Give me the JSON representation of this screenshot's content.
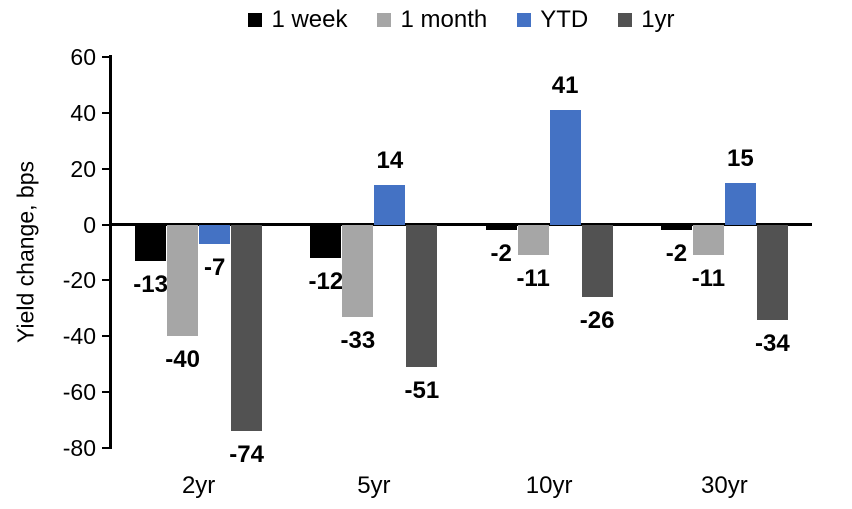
{
  "chart_data": {
    "type": "bar",
    "title": "",
    "xlabel": "",
    "ylabel": "Yield change, bps",
    "categories": [
      "2yr",
      "5yr",
      "10yr",
      "30yr"
    ],
    "series": [
      {
        "name": "1 week",
        "color": "#000000",
        "values": [
          -13,
          -12,
          -2,
          -2
        ]
      },
      {
        "name": "1 month",
        "color": "#A6A6A6",
        "values": [
          -40,
          -33,
          -11,
          -11
        ]
      },
      {
        "name": "YTD",
        "color": "#4472C4",
        "values": [
          -7,
          14,
          41,
          15
        ]
      },
      {
        "name": "1yr",
        "color": "#525252",
        "values": [
          -74,
          -51,
          -26,
          -34
        ]
      }
    ],
    "ylim": [
      -80,
      60
    ],
    "yticks": [
      60,
      40,
      20,
      0,
      -20,
      -40,
      -60,
      -80
    ],
    "grid": false,
    "legend_position": "top",
    "data_labels": true,
    "axis_color": "#000000",
    "background_color": "#FFFFFF"
  }
}
